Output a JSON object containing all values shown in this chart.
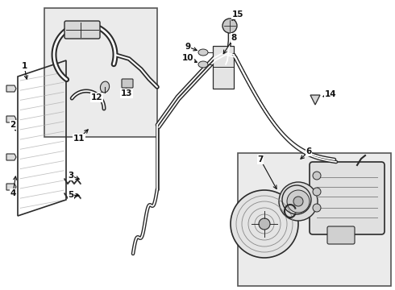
{
  "bg_color": "#ffffff",
  "line_color": "#2a2a2a",
  "box_fill": "#f0f0f0",
  "fig_width": 4.9,
  "fig_height": 3.6,
  "dpi": 100
}
